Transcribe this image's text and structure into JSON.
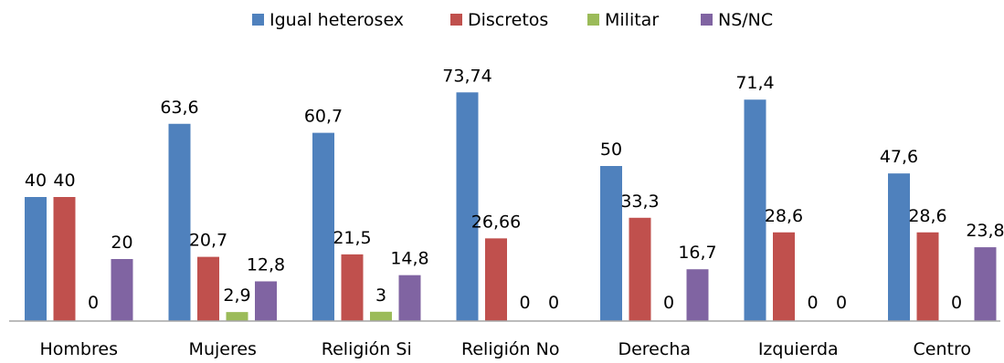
{
  "chart_data": {
    "type": "bar",
    "title": "",
    "xlabel": "",
    "ylabel": "",
    "ylim": [
      0,
      80
    ],
    "grid": false,
    "legend_position": "top",
    "categories": [
      "Hombres",
      "Mujeres",
      "Religión Si",
      "Religión No",
      "Derecha",
      "Izquierda",
      "Centro"
    ],
    "series": [
      {
        "name": "Igual heterosex",
        "color": "#4f81bd",
        "values": [
          40,
          63.6,
          60.7,
          73.74,
          50,
          71.4,
          47.6
        ],
        "labels": [
          "40",
          "63,6",
          "60,7",
          "73,74",
          "50",
          "71,4",
          "47,6"
        ]
      },
      {
        "name": "Discretos",
        "color": "#c0504d",
        "values": [
          40,
          20.7,
          21.5,
          26.66,
          33.3,
          28.6,
          28.6
        ],
        "labels": [
          "40",
          "20,7",
          "21,5",
          "26,66",
          "33,3",
          "28,6",
          "28,6"
        ]
      },
      {
        "name": "Militar",
        "color": "#9bbb59",
        "values": [
          0,
          2.9,
          3,
          0,
          0,
          0,
          0
        ],
        "labels": [
          "0",
          "2,9",
          "3",
          "0",
          "0",
          "0",
          "0"
        ]
      },
      {
        "name": "NS/NC",
        "color": "#8064a2",
        "values": [
          20,
          12.8,
          14.8,
          0,
          16.7,
          0,
          23.8
        ],
        "labels": [
          "20",
          "12,8",
          "14,8",
          "0",
          "16,7",
          "0",
          "23,8"
        ]
      }
    ]
  }
}
